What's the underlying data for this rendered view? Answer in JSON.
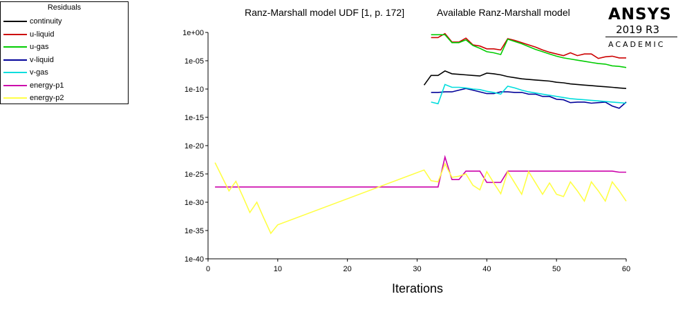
{
  "chart_data": {
    "type": "line",
    "title_left": "Ranz-Marshall model UDF [1, p. 172]",
    "title_right": "Available Ranz-Marshall model",
    "xlabel": "Iterations",
    "ylabel": "",
    "xlim": [
      0,
      60
    ],
    "y_scale": "log",
    "ylim_exponent": [
      -40,
      0
    ],
    "x_ticks": [
      0,
      10,
      20,
      30,
      40,
      50,
      60
    ],
    "x_tick_labels": [
      "0",
      "10",
      "20",
      "30",
      "40",
      "50",
      "60"
    ],
    "y_ticks_exponent": [
      0,
      -5,
      -10,
      -15,
      -20,
      -25,
      -30,
      -35,
      -40
    ],
    "y_tick_labels": [
      "1e+00",
      "1e-05",
      "1e-10",
      "1e-15",
      "1e-20",
      "1e-25",
      "1e-30",
      "1e-35",
      "1e-40"
    ],
    "legend_title": "Residuals",
    "legend_position": "top-left",
    "series": [
      {
        "name": "continuity",
        "color": "#000000",
        "x": [
          31,
          32,
          33,
          34,
          35,
          36,
          37,
          38,
          39,
          40,
          41,
          42,
          43,
          44,
          45,
          46,
          47,
          48,
          49,
          50,
          51,
          52,
          53,
          54,
          55,
          56,
          57,
          58,
          59,
          60
        ],
        "y_exponent": [
          -9.3,
          -7.6,
          -7.6,
          -6.8,
          -7.3,
          -7.4,
          -7.5,
          -7.6,
          -7.7,
          -7.2,
          -7.3,
          -7.5,
          -7.8,
          -8.0,
          -8.2,
          -8.3,
          -8.4,
          -8.5,
          -8.6,
          -8.8,
          -8.9,
          -9.1,
          -9.2,
          -9.3,
          -9.4,
          -9.5,
          -9.6,
          -9.7,
          -9.8,
          -9.9
        ]
      },
      {
        "name": "u-liquid",
        "color": "#cc0000",
        "x": [
          32,
          33,
          34,
          35,
          36,
          37,
          38,
          39,
          40,
          41,
          42,
          43,
          44,
          45,
          46,
          47,
          48,
          49,
          50,
          51,
          52,
          53,
          54,
          55,
          56,
          57,
          58,
          59,
          60
        ],
        "y_exponent": [
          -0.9,
          -0.9,
          -0.2,
          -1.7,
          -1.7,
          -1.0,
          -2.2,
          -2.4,
          -2.9,
          -2.9,
          -3.1,
          -1.1,
          -1.4,
          -1.8,
          -2.2,
          -2.6,
          -3.1,
          -3.5,
          -3.8,
          -4.1,
          -3.6,
          -4.1,
          -3.8,
          -3.8,
          -4.6,
          -4.3,
          -4.2,
          -4.5,
          -4.5
        ]
      },
      {
        "name": "u-gas",
        "color": "#00cc00",
        "x": [
          32,
          33,
          34,
          35,
          36,
          37,
          38,
          39,
          40,
          41,
          42,
          43,
          44,
          45,
          46,
          47,
          48,
          49,
          50,
          51,
          52,
          53,
          54,
          55,
          56,
          57,
          58,
          59,
          60
        ],
        "y_exponent": [
          -0.4,
          -0.4,
          -0.4,
          -1.8,
          -1.8,
          -1.3,
          -2.3,
          -2.8,
          -3.4,
          -3.6,
          -3.9,
          -1.2,
          -1.6,
          -2.0,
          -2.5,
          -3.0,
          -3.4,
          -3.8,
          -4.2,
          -4.5,
          -4.7,
          -4.9,
          -5.1,
          -5.3,
          -5.5,
          -5.6,
          -5.9,
          -6.0,
          -6.2
        ]
      },
      {
        "name": "v-liquid",
        "color": "#000099",
        "x": [
          32,
          33,
          34,
          35,
          36,
          37,
          38,
          39,
          40,
          41,
          42,
          43,
          44,
          45,
          46,
          47,
          48,
          49,
          50,
          51,
          52,
          53,
          54,
          55,
          56,
          57,
          58,
          59,
          60
        ],
        "y_exponent": [
          -10.6,
          -10.6,
          -10.5,
          -10.5,
          -10.2,
          -9.9,
          -10.2,
          -10.5,
          -10.8,
          -10.8,
          -10.5,
          -10.5,
          -10.6,
          -10.6,
          -10.9,
          -10.9,
          -11.3,
          -11.3,
          -11.8,
          -11.9,
          -12.4,
          -12.3,
          -12.3,
          -12.5,
          -12.4,
          -12.3,
          -13.0,
          -13.4,
          -12.3
        ]
      },
      {
        "name": "v-gas",
        "color": "#00dddd",
        "x": [
          32,
          33,
          34,
          35,
          36,
          37,
          38,
          39,
          40,
          41,
          42,
          43,
          44,
          45,
          46,
          47,
          48,
          49,
          50,
          51,
          52,
          53,
          54,
          55,
          56,
          57,
          58,
          59,
          60
        ],
        "y_exponent": [
          -12.3,
          -12.6,
          -9.2,
          -9.7,
          -9.7,
          -9.8,
          -10.0,
          -10.1,
          -10.4,
          -10.6,
          -10.9,
          -9.5,
          -9.8,
          -10.2,
          -10.5,
          -10.7,
          -10.9,
          -11.1,
          -11.3,
          -11.5,
          -11.7,
          -11.8,
          -11.9,
          -12.0,
          -12.1,
          -12.2,
          -12.3,
          -12.4,
          -12.5
        ]
      },
      {
        "name": "energy-p1",
        "color": "#cc00aa",
        "x": [
          1,
          31,
          32,
          33,
          34,
          35,
          36,
          37,
          38,
          39,
          40,
          41,
          42,
          43,
          44,
          45,
          46,
          47,
          48,
          49,
          50,
          51,
          52,
          53,
          54,
          55,
          56,
          57,
          58,
          59,
          60
        ],
        "y_exponent": [
          -27.3,
          -27.3,
          -27.3,
          -27.3,
          -22.0,
          -26.0,
          -26.0,
          -24.5,
          -24.5,
          -24.5,
          -26.5,
          -26.5,
          -26.5,
          -24.5,
          -24.5,
          -24.5,
          -24.5,
          -24.5,
          -24.5,
          -24.5,
          -24.5,
          -24.5,
          -24.5,
          -24.5,
          -24.5,
          -24.5,
          -24.5,
          -24.5,
          -24.5,
          -24.7,
          -24.7
        ]
      },
      {
        "name": "energy-p2",
        "color": "#ffff44",
        "x": [
          1,
          2,
          3,
          4,
          5,
          6,
          7,
          8,
          9,
          10,
          31,
          32,
          33,
          34,
          35,
          36,
          37,
          38,
          39,
          40,
          41,
          42,
          43,
          44,
          45,
          46,
          47,
          48,
          49,
          50,
          51,
          52,
          53,
          54,
          55,
          56,
          57,
          58,
          59,
          60
        ],
        "y_exponent": [
          -23.0,
          -25.5,
          -28.0,
          -26.3,
          -29.0,
          -31.8,
          -30.0,
          -32.8,
          -35.5,
          -34.0,
          -24.3,
          -26.2,
          -26.4,
          -23.2,
          -25.6,
          -25.4,
          -25.0,
          -27.0,
          -27.8,
          -24.6,
          -26.6,
          -28.5,
          -24.6,
          -26.6,
          -28.6,
          -24.6,
          -26.6,
          -28.6,
          -26.6,
          -28.6,
          -29.0,
          -26.4,
          -28.0,
          -29.8,
          -26.4,
          -28.0,
          -29.8,
          -26.4,
          -28.0,
          -29.8
        ]
      }
    ]
  },
  "logo": {
    "brand": "ANSYS",
    "version": "2019 R3",
    "edition": "ACADEMIC"
  }
}
